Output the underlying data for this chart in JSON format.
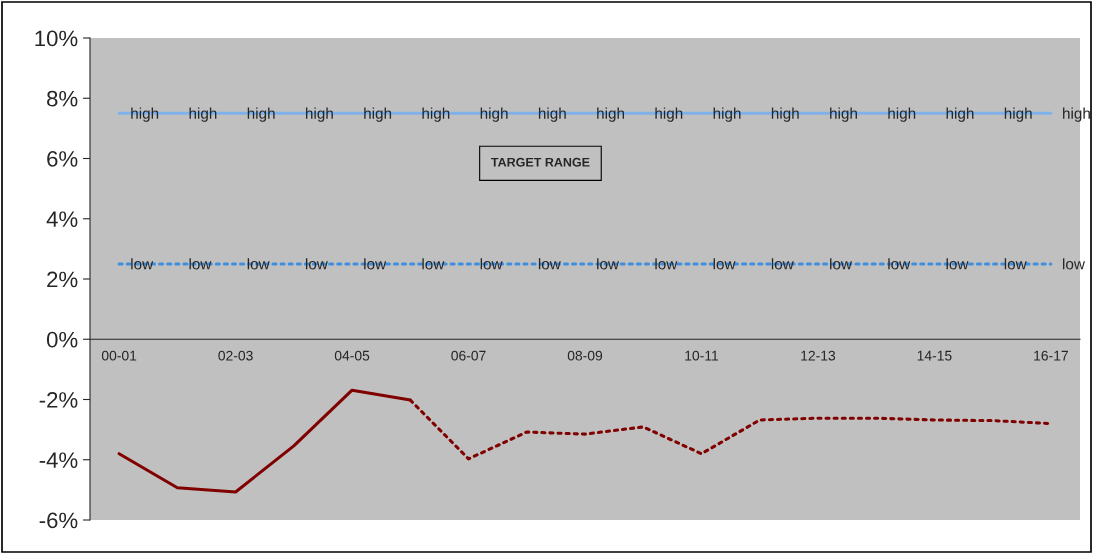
{
  "chart_data": {
    "type": "line",
    "categories": [
      "00-01",
      null,
      "02-03",
      null,
      "04-05",
      null,
      "06-07",
      null,
      "08-09",
      null,
      "10-11",
      null,
      "12-13",
      null,
      "14-15",
      null,
      "16-17"
    ],
    "series": [
      {
        "color": "#7fb2ea",
        "line_style": "solid",
        "values": [
          7.5,
          7.5,
          7.5,
          7.5,
          7.5,
          7.5,
          7.5,
          7.5,
          7.5,
          7.5,
          7.5,
          7.5,
          7.5,
          7.5,
          7.5,
          7.5,
          7.5
        ],
        "value_labels": [
          "high",
          "high",
          "high",
          "high",
          "high",
          "high",
          "high",
          "high",
          "high",
          "high",
          "high",
          "high",
          "high",
          "high",
          "high",
          "high",
          "high"
        ]
      },
      {
        "color": "#3f8fe0",
        "line_style": "dotted",
        "values": [
          2.5,
          2.5,
          2.5,
          2.5,
          2.5,
          2.5,
          2.5,
          2.5,
          2.5,
          2.5,
          2.5,
          2.5,
          2.5,
          2.5,
          2.5,
          2.5,
          2.5
        ],
        "value_labels": [
          "low",
          "low",
          "low",
          "low",
          "low",
          "low",
          "low",
          "low",
          "low",
          "low",
          "low",
          "low",
          "low",
          "low",
          "low",
          "low",
          "low"
        ]
      },
      {
        "color": "#800000",
        "line_style": "solid",
        "values": [
          -3.8,
          -4.93,
          -5.07,
          -3.54,
          -1.69,
          -2.02,
          null,
          null,
          null,
          null,
          null,
          null,
          null,
          null,
          null,
          null,
          null
        ]
      },
      {
        "color": "#800000",
        "line_style": "dotted",
        "values": [
          null,
          null,
          null,
          null,
          null,
          -2.02,
          -3.97,
          -3.08,
          -3.15,
          -2.91,
          -3.8,
          -2.68,
          -2.62,
          -2.62,
          -2.68,
          -2.7,
          -2.8
        ]
      }
    ],
    "ylim": [
      -6,
      10
    ],
    "yticks": [
      {
        "value": -6,
        "label": "-6%"
      },
      {
        "value": -4,
        "label": "-4%"
      },
      {
        "value": -2,
        "label": "-2%"
      },
      {
        "value": 0,
        "label": "0%"
      },
      {
        "value": 2,
        "label": "2%"
      },
      {
        "value": 4,
        "label": "4%"
      },
      {
        "value": 6,
        "label": "6%"
      },
      {
        "value": 8,
        "label": "8%"
      },
      {
        "value": 10,
        "label": "10%"
      }
    ],
    "annotations": [
      "TARGET RANGE"
    ],
    "grid": false,
    "legend": false,
    "marker": "none"
  }
}
